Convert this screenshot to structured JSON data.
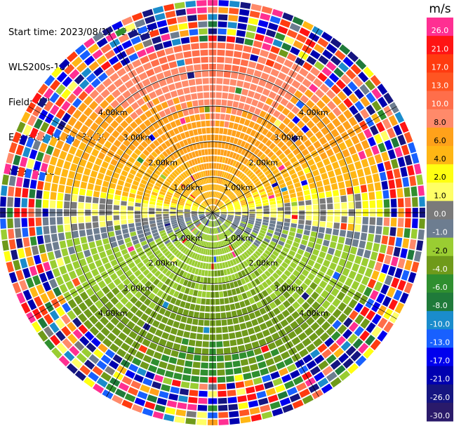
{
  "meta": {
    "start_time": "Start time: 2023/08/11 12:42:26",
    "site": "WLS200s-181",
    "field": "Field: VEL",
    "elevation": "Elevation(deg): 35.30",
    "nrays": "NRays: 120"
  },
  "colorbar": {
    "unit": "m/s",
    "ticks": [
      "26.0",
      "21.0",
      "17.0",
      "13.0",
      "10.0",
      "8.0",
      "6.0",
      "4.0",
      "2.0",
      "1.0",
      "0.0",
      "-1.0",
      "-2.0",
      "-4.0",
      "-6.0",
      "-8.0",
      "-10.0",
      "-13.0",
      "-17.0",
      "-21.0",
      "-26.0",
      "-30.0"
    ],
    "colors": [
      "#ff2f92",
      "#ff1414",
      "#ff3b10",
      "#ff5522",
      "#ff6e4a",
      "#ff8a6a",
      "#ffa11a",
      "#ffb614",
      "#ffff11",
      "#ffff66",
      "#7a7a7a",
      "#6d7d90",
      "#9acd32",
      "#6f9a1a",
      "#2f8f2f",
      "#1f7a3a",
      "#1a8ccc",
      "#1860ff",
      "#0000ee",
      "#0000b0",
      "#151580",
      "#2a1a6a"
    ]
  },
  "chart_data": {
    "type": "heatmap",
    "projection": "polar-ppi",
    "field": "VEL",
    "units": "m/s",
    "rays": 120,
    "range_rings_km": [
      1.0,
      2.0,
      3.0,
      4.0
    ],
    "range_labels": [
      "1.00km",
      "2.00km",
      "3.00km",
      "4.00km"
    ],
    "value_min": -30.0,
    "value_max": 26.0,
    "max_range_km": 5.0,
    "pattern": {
      "positive_sector": "north half, approx +1 to +8 m/s (yellow to orange)",
      "negative_sector": "south half, approx -1 to -6 m/s (olive to green)",
      "zero_band": "east-west line, gray",
      "noise_beyond_km": 4.0
    }
  }
}
